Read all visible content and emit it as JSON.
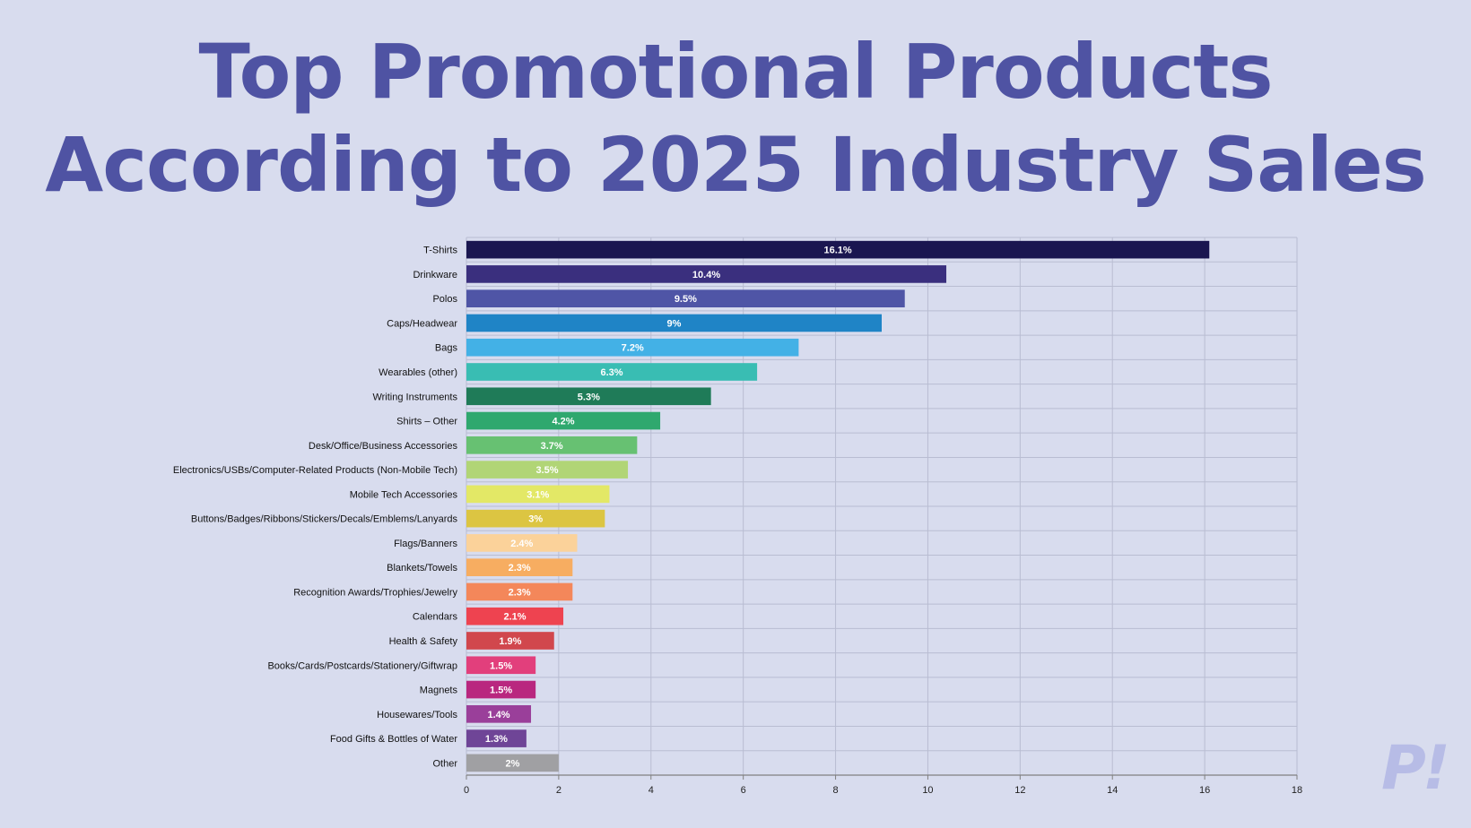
{
  "title": {
    "line1": "Top Promotional Products",
    "line2": "According to 2025 Industry Sales"
  },
  "logo": {
    "text": "P!"
  },
  "colors": {
    "background": "#d8dcee",
    "title": "#4f53a3",
    "grid": "#b9bdd2",
    "axis": "#808080",
    "logo": "#b7bce6"
  },
  "chart_data": {
    "type": "bar",
    "orientation": "horizontal",
    "categories": [
      "T-Shirts",
      "Drinkware",
      "Polos",
      "Caps/Headwear",
      "Bags",
      "Wearables (other)",
      "Writing Instruments",
      "Shirts – Other",
      "Desk/Office/Business Accessories",
      "Electronics/USBs/Computer-Related Products (Non-Mobile Tech)",
      "Mobile Tech Accessories",
      "Buttons/Badges/Ribbons/Stickers/Decals/Emblems/Lanyards",
      "Flags/Banners",
      "Blankets/Towels",
      "Recognition Awards/Trophies/Jewelry",
      "Calendars",
      "Health & Safety",
      "Books/Cards/Postcards/Stationery/Giftwrap",
      "Magnets",
      "Housewares/Tools",
      "Food Gifts & Bottles of Water",
      "Other"
    ],
    "values": [
      16.1,
      10.4,
      9.5,
      9,
      7.2,
      6.3,
      5.3,
      4.2,
      3.7,
      3.5,
      3.1,
      3,
      2.4,
      2.3,
      2.3,
      2.1,
      1.9,
      1.5,
      1.5,
      1.4,
      1.3,
      2
    ],
    "data_labels": [
      "16.1%",
      "10.4%",
      "9.5%",
      "9%",
      "7.2%",
      "6.3%",
      "5.3%",
      "4.2%",
      "3.7%",
      "3.5%",
      "3.1%",
      "3%",
      "2.4%",
      "2.3%",
      "2.3%",
      "2.1%",
      "1.9%",
      "1.5%",
      "1.5%",
      "1.4%",
      "1.3%",
      "2%"
    ],
    "bar_colors": [
      "#1a1650",
      "#3a2f7e",
      "#4f55a6",
      "#1f84c6",
      "#43b1e6",
      "#39bdb3",
      "#1f7b58",
      "#2fa86e",
      "#67c172",
      "#b1d576",
      "#e3e866",
      "#dcc542",
      "#fbd29a",
      "#f7ad61",
      "#f4875a",
      "#ee4350",
      "#d1474d",
      "#e23f7c",
      "#b9277f",
      "#9a3f9a",
      "#6f4597",
      "#a0a0a3"
    ],
    "xlim": [
      0,
      18
    ],
    "xticks": [
      "0",
      "2",
      "4",
      "6",
      "8",
      "10",
      "12",
      "14",
      "16",
      "18"
    ],
    "grid": true
  }
}
